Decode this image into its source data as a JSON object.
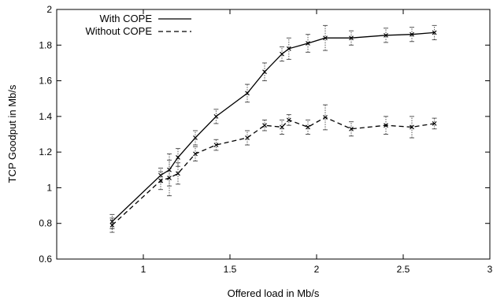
{
  "chart_data": {
    "type": "line",
    "title": "",
    "xlabel": "Offered load in Mb/s",
    "ylabel": "TCP Goodput in Mb/s",
    "xlim": [
      0.5,
      3
    ],
    "ylim": [
      0.6,
      2
    ],
    "xticks": [
      1,
      1.5,
      2,
      2.5,
      3
    ],
    "xtick_labels": [
      "1",
      "1.5",
      "2",
      "2.5",
      "3"
    ],
    "yticks": [
      0.6,
      0.8,
      1,
      1.2,
      1.4,
      1.6,
      1.8,
      2
    ],
    "ytick_labels": [
      "0.6",
      "0.8",
      "1",
      "1.2",
      "1.4",
      "1.6",
      "1.8",
      "2"
    ],
    "grid": false,
    "legend": "top-left",
    "series": [
      {
        "name": "With COPE",
        "style": "solid",
        "color": "#000000",
        "x": [
          0.82,
          1.1,
          1.15,
          1.2,
          1.3,
          1.42,
          1.6,
          1.7,
          1.8,
          1.84,
          1.95,
          2.05,
          2.2,
          2.4,
          2.55,
          2.68
        ],
        "y": [
          0.81,
          1.07,
          1.1,
          1.17,
          1.28,
          1.4,
          1.53,
          1.65,
          1.75,
          1.78,
          1.81,
          1.84,
          1.84,
          1.855,
          1.86,
          1.87
        ],
        "err": [
          0.04,
          0.04,
          0.09,
          0.05,
          0.04,
          0.04,
          0.05,
          0.05,
          0.04,
          0.06,
          0.05,
          0.07,
          0.04,
          0.04,
          0.04,
          0.04
        ]
      },
      {
        "name": "Without COPE",
        "style": "dashed",
        "color": "#000000",
        "x": [
          0.82,
          1.1,
          1.15,
          1.2,
          1.3,
          1.42,
          1.6,
          1.7,
          1.8,
          1.84,
          1.95,
          2.05,
          2.2,
          2.4,
          2.55,
          2.68
        ],
        "y": [
          0.79,
          1.04,
          1.055,
          1.08,
          1.19,
          1.24,
          1.28,
          1.35,
          1.34,
          1.38,
          1.34,
          1.395,
          1.33,
          1.35,
          1.34,
          1.36
        ],
        "err": [
          0.04,
          0.05,
          0.1,
          0.06,
          0.04,
          0.03,
          0.04,
          0.03,
          0.04,
          0.03,
          0.04,
          0.07,
          0.04,
          0.05,
          0.06,
          0.03
        ]
      }
    ]
  }
}
